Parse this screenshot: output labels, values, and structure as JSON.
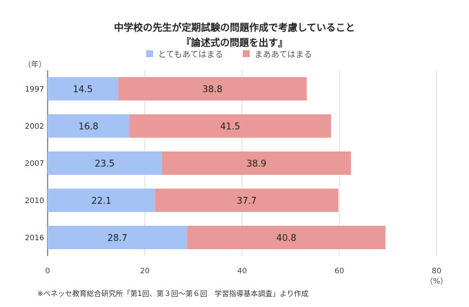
{
  "chart_data": {
    "type": "bar",
    "orientation": "horizontal",
    "stacked": true,
    "title": "中学校の先生が定期試験の問題作成で考慮していること",
    "subtitle": "『論述式の問題を出す』",
    "ylabel": "（年）",
    "xlabel": "（%）",
    "categories": [
      "1997",
      "2002",
      "2007",
      "2010",
      "2016"
    ],
    "series": [
      {
        "name": "とてもあてはまる",
        "color": "#a4c2f4",
        "values": [
          14.5,
          16.8,
          23.5,
          22.1,
          28.7
        ]
      },
      {
        "name": "まああてはまる",
        "color": "#ea9999",
        "values": [
          38.8,
          41.5,
          38.9,
          37.7,
          40.8
        ]
      }
    ],
    "xlim": [
      0,
      80
    ],
    "xticks": [
      "0",
      "20",
      "40",
      "60",
      "80"
    ],
    "grid": true,
    "legend": "top-center",
    "note": "※ベネッセ教育総合研究所「第1回、第３回～第６回　学習指導基本調査」より作成"
  }
}
